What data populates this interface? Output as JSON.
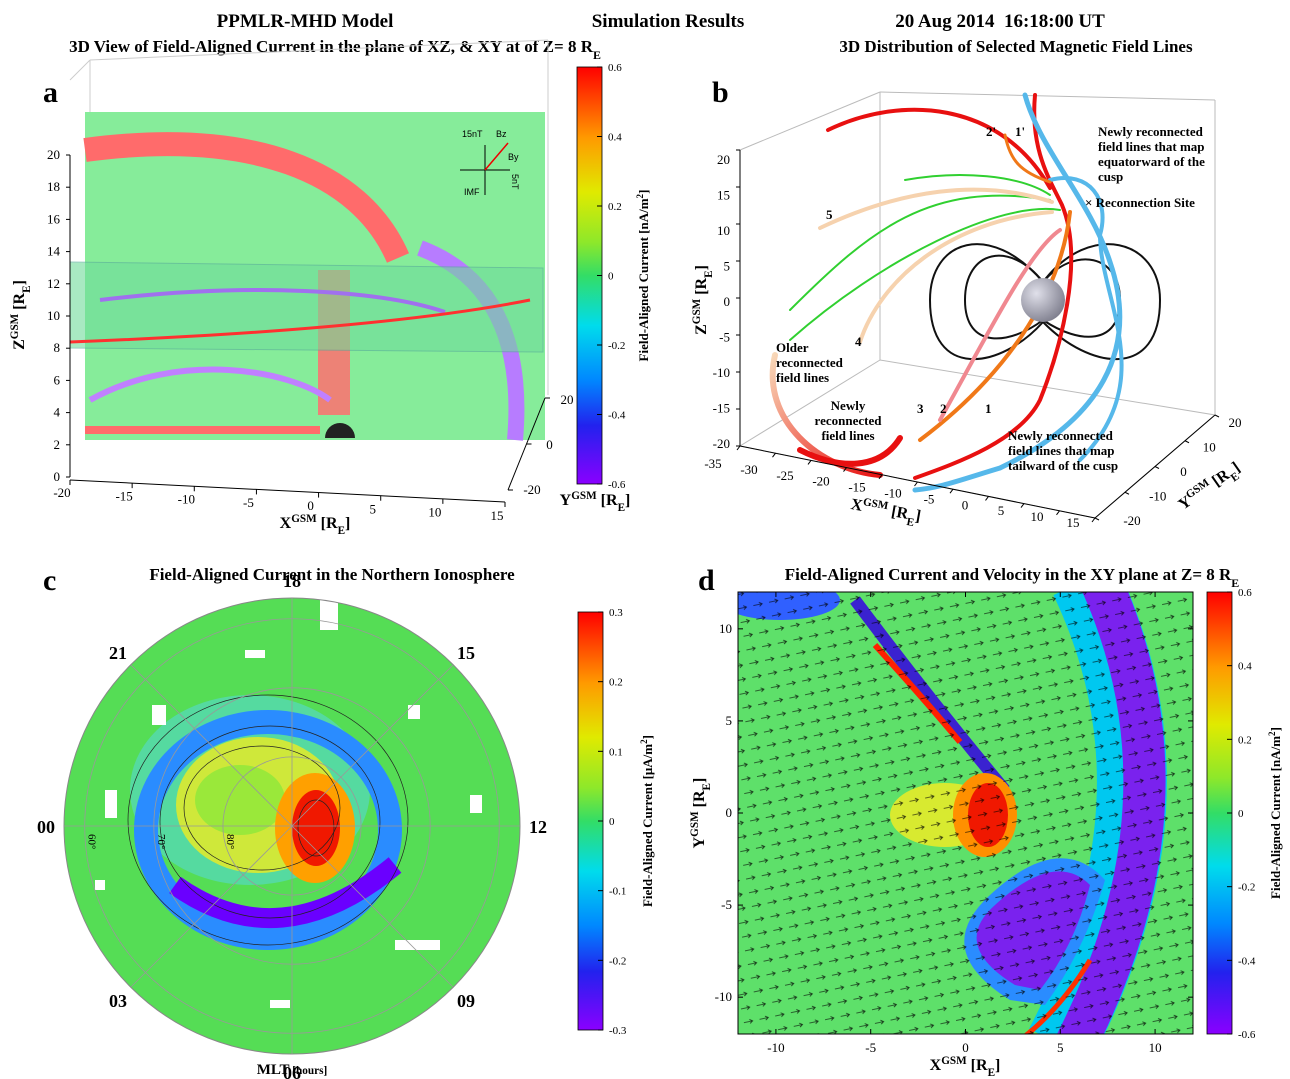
{
  "header": {
    "items": [
      "PPMLR-MHD Model",
      "Simulation Results",
      "20 Aug 2014  16:18:00 UT"
    ]
  },
  "chart_data": [
    {
      "type": "3d-slices",
      "panel": "a",
      "title": [
        {
          "text": "3D View of Field-Aligned Current in the plane of XZ, & XY at of Z= 8 R"
        },
        {
          "text": "E",
          "shift": "sub"
        }
      ],
      "xlabel": [
        {
          "text": "X"
        },
        {
          "text": "GSM",
          "shift": "sup"
        },
        {
          "text": " [R"
        },
        {
          "text": "E",
          "shift": "sub"
        },
        {
          "text": "]"
        }
      ],
      "ylabel": [
        {
          "text": "Y"
        },
        {
          "text": "GSM",
          "shift": "sup"
        },
        {
          "text": " [R"
        },
        {
          "text": "E",
          "shift": "sub"
        },
        {
          "text": "]"
        }
      ],
      "zlabel": [
        {
          "text": "Z"
        },
        {
          "text": "GSM",
          "shift": "sup"
        },
        {
          "text": " [R"
        },
        {
          "text": "E",
          "shift": "sub"
        },
        {
          "text": "]"
        }
      ],
      "xlim": [
        -20,
        15
      ],
      "xticks": [
        -20,
        -15,
        -10,
        -5,
        0,
        5,
        10,
        15
      ],
      "ylim": [
        -20,
        20
      ],
      "yticks": [
        -20,
        0,
        20
      ],
      "zlim": [
        0,
        20
      ],
      "zticks": [
        0,
        2,
        4,
        6,
        8,
        10,
        12,
        14,
        16,
        18,
        20
      ],
      "colorbar": {
        "label": [
          {
            "text": "Field-Aligned Current [nA/m"
          },
          {
            "text": "2",
            "shift": "sup"
          },
          {
            "text": "]"
          }
        ],
        "clim": [
          -0.6,
          0.6
        ],
        "ticks": [
          0.6,
          0.4,
          0.2,
          0,
          -0.2,
          -0.4,
          -0.6
        ]
      },
      "imf_inset": [
        "15nT",
        "Bz",
        "By",
        "IMF",
        "5nT"
      ]
    },
    {
      "type": "3d-lines",
      "panel": "b",
      "title": [
        {
          "text": "3D Distribution of Selected Magnetic Field Lines"
        }
      ],
      "xlabel": [
        {
          "text": "X"
        },
        {
          "text": "GSM",
          "shift": "sup"
        },
        {
          "text": " [R"
        },
        {
          "text": "E",
          "shift": "sub"
        },
        {
          "text": "]"
        }
      ],
      "ylabel": [
        {
          "text": "Y"
        },
        {
          "text": "GSM",
          "shift": "sup"
        },
        {
          "text": " [R"
        },
        {
          "text": "E",
          "shift": "sub"
        },
        {
          "text": "]"
        }
      ],
      "zlabel": [
        {
          "text": "Z"
        },
        {
          "text": "GSM",
          "shift": "sup"
        },
        {
          "text": " [R"
        },
        {
          "text": "E",
          "shift": "sub"
        },
        {
          "text": "]"
        }
      ],
      "xlim": [
        -35,
        15
      ],
      "xticks": [
        -35,
        -30,
        -25,
        -20,
        -15,
        -10,
        -5,
        0,
        5,
        10,
        15
      ],
      "ylim": [
        -20,
        20
      ],
      "yticks": [
        -20,
        -10,
        0,
        10,
        20
      ],
      "zlim": [
        -20,
        20
      ],
      "zticks": [
        -20,
        -15,
        -10,
        -5,
        0,
        5,
        10,
        15,
        20
      ],
      "annotations": [
        {
          "lines": [
            "2'"
          ],
          "color": "#f07818"
        },
        {
          "lines": [
            "1'"
          ],
          "color": "#e81010"
        },
        {
          "lines": [
            "Newly reconnected",
            "field lines that map",
            "equatorward of the",
            "cusp"
          ],
          "color": "#3aaee8"
        },
        {
          "lines": [
            "× Reconnection Site"
          ],
          "color": "#e020d0"
        },
        {
          "lines": [
            "5"
          ],
          "color": "#f4c49a"
        },
        {
          "lines": [
            "Older",
            "reconnected",
            "field lines"
          ],
          "color": "#f4c49a"
        },
        {
          "lines": [
            "4"
          ],
          "color": "#f4c49a"
        },
        {
          "lines": [
            "Newly",
            "reconnected",
            "field lines"
          ],
          "color": "#e81010"
        },
        {
          "lines": [
            "3"
          ],
          "color": "#f08890"
        },
        {
          "lines": [
            "2"
          ],
          "color": "#f07818"
        },
        {
          "lines": [
            "1"
          ],
          "color": "#e81010"
        },
        {
          "lines": [
            "Newly reconnected",
            "field lines that map",
            "tailward of the cusp"
          ],
          "color": "#e81010"
        }
      ]
    },
    {
      "type": "polar",
      "panel": "c",
      "title": [
        {
          "text": "Field-Aligned Current in the Northern Ionosphere"
        }
      ],
      "rlim": [
        90,
        57
      ],
      "rticks": [
        {
          "value": 60,
          "label": "60°"
        },
        {
          "value": 70,
          "label": "70°"
        },
        {
          "value": 80,
          "label": "80°"
        }
      ],
      "thetaticks": [
        {
          "value": 0,
          "label": "00"
        },
        {
          "value": 3,
          "label": "03"
        },
        {
          "value": 6,
          "label": "06"
        },
        {
          "value": 9,
          "label": "09"
        },
        12,
        15,
        18,
        21
      ],
      "thetalabel": [
        {
          "text": "MLT"
        },
        {
          "text": " [hours]",
          "shift": "small"
        }
      ],
      "colorbar": {
        "label": [
          {
            "text": "Field-Aligned Current [μA/m"
          },
          {
            "text": "2",
            "shift": "sup"
          },
          {
            "text": "]"
          }
        ],
        "clim": [
          -0.3,
          0.3
        ],
        "ticks": [
          0.3,
          0.2,
          0.1,
          0,
          -0.1,
          -0.2,
          -0.3
        ]
      }
    },
    {
      "type": "heatmap-quiver",
      "panel": "d",
      "title": [
        {
          "text": "Field-Aligned Current and Velocity in the XY plane at Z= 8 R"
        },
        {
          "text": "E",
          "shift": "sub"
        }
      ],
      "xlabel": [
        {
          "text": "X"
        },
        {
          "text": "GSM",
          "shift": "sup"
        },
        {
          "text": " [R"
        },
        {
          "text": "E",
          "shift": "sub"
        },
        {
          "text": "]"
        }
      ],
      "ylabel": [
        {
          "text": "Y"
        },
        {
          "text": "GSM",
          "shift": "sup"
        },
        {
          "text": " [R"
        },
        {
          "text": "E",
          "shift": "sub"
        },
        {
          "text": "]"
        }
      ],
      "xlim": [
        -12,
        12
      ],
      "xticks": [
        -10,
        -5,
        0,
        5,
        10
      ],
      "ylim": [
        -12,
        12
      ],
      "yticks": [
        -10,
        -5,
        0,
        5,
        10
      ],
      "colorbar": {
        "label": [
          {
            "text": "Field-Aligned Current [nA/m"
          },
          {
            "text": "2",
            "shift": "sup"
          },
          {
            "text": "]"
          }
        ],
        "clim": [
          -0.6,
          0.6
        ],
        "ticks": [
          0.6,
          0.4,
          0.2,
          0,
          -0.2,
          -0.4,
          -0.6
        ]
      }
    }
  ]
}
